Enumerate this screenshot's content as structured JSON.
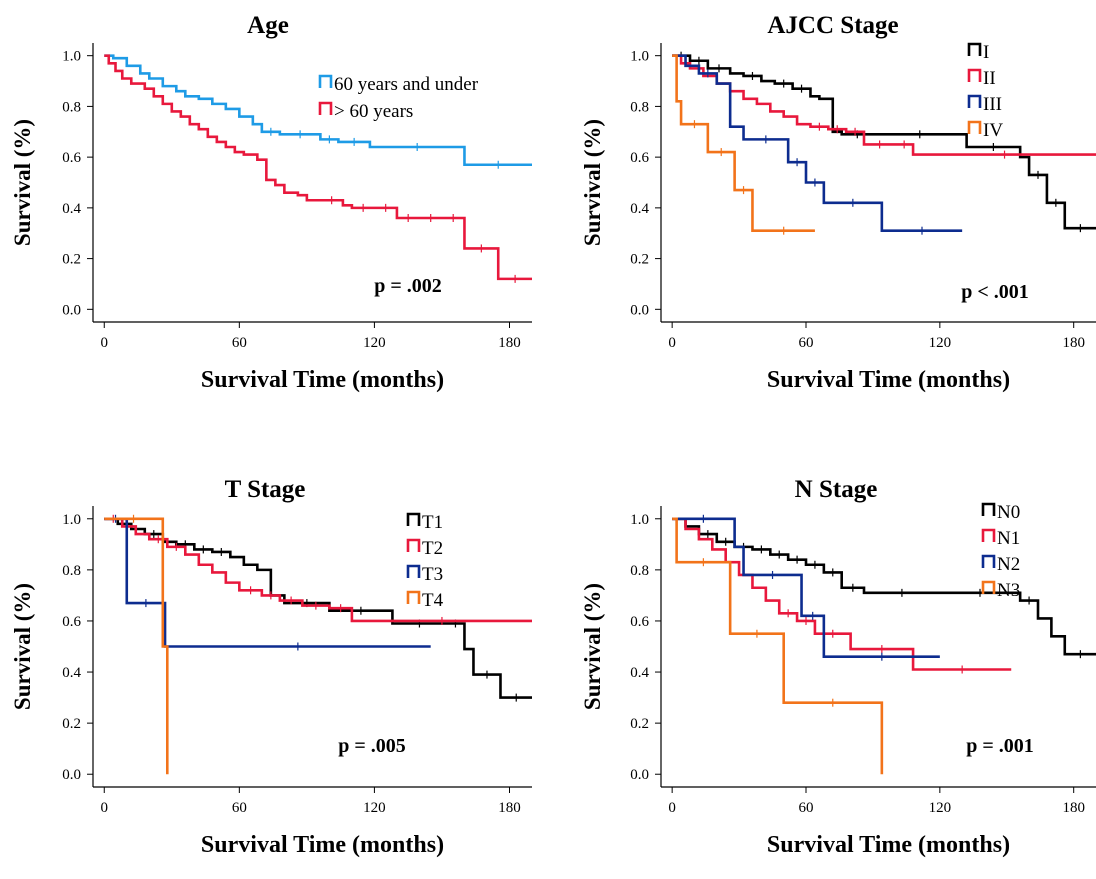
{
  "chart_data": [
    {
      "type": "line",
      "title": "Age",
      "xlabel": "Survival Time (months)",
      "ylabel": "Survival (%)",
      "xticks": [
        "0",
        "60",
        "120",
        "180"
      ],
      "yticks": [
        "0.0",
        "0.2",
        "0.4",
        "0.6",
        "0.8",
        "1.0"
      ],
      "xlim": [
        -5,
        190
      ],
      "ylim": [
        -0.05,
        1.05
      ],
      "legend_position": "top-right",
      "annotation": "p = .002",
      "series": [
        {
          "name": "60 years and under",
          "color": "#1e9be6",
          "x": [
            0,
            4,
            10,
            16,
            20,
            26,
            32,
            36,
            42,
            48,
            54,
            60,
            66,
            70,
            78,
            96,
            104,
            118,
            160,
            190
          ],
          "y": [
            1.0,
            0.99,
            0.96,
            0.93,
            0.91,
            0.88,
            0.86,
            0.84,
            0.83,
            0.81,
            0.79,
            0.76,
            0.73,
            0.7,
            0.69,
            0.67,
            0.66,
            0.64,
            0.57,
            0.57
          ]
        },
        {
          "name": "> 60 years",
          "color": "#e8183c",
          "x": [
            0,
            2,
            5,
            8,
            12,
            18,
            22,
            26,
            30,
            34,
            38,
            42,
            46,
            50,
            54,
            58,
            62,
            68,
            72,
            76,
            80,
            86,
            90,
            96,
            106,
            110,
            120,
            130,
            140,
            150,
            160,
            175,
            190
          ],
          "y": [
            1.0,
            0.97,
            0.94,
            0.91,
            0.89,
            0.87,
            0.84,
            0.81,
            0.78,
            0.76,
            0.73,
            0.71,
            0.68,
            0.66,
            0.64,
            0.62,
            0.61,
            0.59,
            0.51,
            0.49,
            0.46,
            0.45,
            0.43,
            0.43,
            0.41,
            0.4,
            0.4,
            0.36,
            0.36,
            0.36,
            0.24,
            0.12,
            0.12
          ]
        }
      ]
    },
    {
      "type": "line",
      "title": "AJCC Stage",
      "xlabel": "Survival Time (months)",
      "ylabel": "Survival (%)",
      "xticks": [
        "0",
        "60",
        "120",
        "180"
      ],
      "yticks": [
        "0.0",
        "0.2",
        "0.4",
        "0.6",
        "0.8",
        "1.0"
      ],
      "xlim": [
        -5,
        190
      ],
      "ylim": [
        -0.05,
        1.05
      ],
      "legend_position": "top-right",
      "annotation": "p < .001",
      "series": [
        {
          "name": "I",
          "color": "#000000",
          "x": [
            0,
            8,
            16,
            26,
            32,
            40,
            46,
            54,
            62,
            66,
            72,
            76,
            90,
            132,
            156,
            160,
            168,
            176,
            190
          ],
          "y": [
            1.0,
            0.98,
            0.95,
            0.93,
            0.92,
            0.9,
            0.89,
            0.87,
            0.84,
            0.83,
            0.7,
            0.69,
            0.69,
            0.64,
            0.6,
            0.53,
            0.42,
            0.32,
            0.32
          ]
        },
        {
          "name": "II",
          "color": "#e8183c",
          "x": [
            0,
            4,
            8,
            14,
            20,
            26,
            32,
            38,
            44,
            50,
            56,
            62,
            70,
            78,
            86,
            100,
            108,
            190
          ],
          "y": [
            1.0,
            0.97,
            0.95,
            0.92,
            0.89,
            0.86,
            0.83,
            0.81,
            0.78,
            0.76,
            0.73,
            0.72,
            0.71,
            0.7,
            0.65,
            0.65,
            0.61,
            0.61
          ]
        },
        {
          "name": "III",
          "color": "#0d2c8f",
          "x": [
            0,
            6,
            12,
            20,
            26,
            32,
            52,
            60,
            68,
            94,
            130
          ],
          "y": [
            1.0,
            0.96,
            0.93,
            0.89,
            0.72,
            0.67,
            0.58,
            0.5,
            0.42,
            0.31,
            0.31
          ]
        },
        {
          "name": "IV",
          "color": "#f2731a",
          "x": [
            0,
            2,
            4,
            16,
            28,
            36,
            64
          ],
          "y": [
            1.0,
            0.82,
            0.73,
            0.62,
            0.47,
            0.31,
            0.31
          ]
        }
      ]
    },
    {
      "type": "line",
      "title": "T Stage",
      "xlabel": "Survival Time (months)",
      "ylabel": "Survival (%)",
      "xticks": [
        "0",
        "60",
        "120",
        "180"
      ],
      "yticks": [
        "0.0",
        "0.2",
        "0.4",
        "0.6",
        "0.8",
        "1.0"
      ],
      "xlim": [
        -5,
        190
      ],
      "ylim": [
        -0.05,
        1.05
      ],
      "legend_position": "top-right",
      "annotation": "p = .005",
      "series": [
        {
          "name": "T1",
          "color": "#000000",
          "x": [
            0,
            6,
            12,
            18,
            26,
            32,
            40,
            48,
            56,
            62,
            68,
            74,
            80,
            100,
            128,
            152,
            160,
            164,
            176,
            190
          ],
          "y": [
            1.0,
            0.98,
            0.96,
            0.94,
            0.91,
            0.9,
            0.88,
            0.87,
            0.85,
            0.82,
            0.8,
            0.7,
            0.67,
            0.64,
            0.59,
            0.59,
            0.49,
            0.39,
            0.3,
            0.3
          ]
        },
        {
          "name": "T2",
          "color": "#e8183c",
          "x": [
            0,
            8,
            14,
            20,
            28,
            36,
            42,
            48,
            54,
            60,
            70,
            78,
            88,
            100,
            110,
            190
          ],
          "y": [
            1.0,
            0.97,
            0.94,
            0.92,
            0.89,
            0.86,
            0.82,
            0.79,
            0.75,
            0.72,
            0.7,
            0.68,
            0.66,
            0.65,
            0.6,
            0.6
          ]
        },
        {
          "name": "T3",
          "color": "#0d2c8f",
          "x": [
            0,
            10,
            27,
            145
          ],
          "y": [
            1.0,
            0.67,
            0.5,
            0.5
          ]
        },
        {
          "name": "T4",
          "color": "#f2731a",
          "x": [
            0,
            26,
            28
          ],
          "y": [
            1.0,
            0.5,
            0.0
          ]
        }
      ]
    },
    {
      "type": "line",
      "title": "N Stage",
      "xlabel": "Survival Time (months)",
      "ylabel": "Survival (%)",
      "xticks": [
        "0",
        "60",
        "120",
        "180"
      ],
      "yticks": [
        "0.0",
        "0.2",
        "0.4",
        "0.6",
        "0.8",
        "1.0"
      ],
      "xlim": [
        -5,
        190
      ],
      "ylim": [
        -0.05,
        1.05
      ],
      "legend_position": "top-right",
      "annotation": "p = .001",
      "series": [
        {
          "name": "N0",
          "color": "#000000",
          "x": [
            0,
            6,
            12,
            20,
            28,
            36,
            44,
            52,
            60,
            68,
            76,
            86,
            120,
            156,
            164,
            170,
            176,
            190
          ],
          "y": [
            1.0,
            0.97,
            0.94,
            0.91,
            0.89,
            0.88,
            0.86,
            0.84,
            0.82,
            0.79,
            0.73,
            0.71,
            0.71,
            0.68,
            0.61,
            0.54,
            0.47,
            0.47
          ]
        },
        {
          "name": "N1",
          "color": "#e8183c",
          "x": [
            0,
            6,
            12,
            18,
            24,
            30,
            36,
            42,
            48,
            56,
            64,
            80,
            108,
            152
          ],
          "y": [
            1.0,
            0.96,
            0.92,
            0.88,
            0.83,
            0.78,
            0.73,
            0.68,
            0.63,
            0.6,
            0.55,
            0.49,
            0.41,
            0.41
          ]
        },
        {
          "name": "N2",
          "color": "#0d2c8f",
          "x": [
            0,
            28,
            32,
            58,
            68,
            120
          ],
          "y": [
            1.0,
            0.89,
            0.78,
            0.62,
            0.46,
            0.46
          ]
        },
        {
          "name": "N3",
          "color": "#f2731a",
          "x": [
            0,
            2,
            26,
            50,
            94
          ],
          "y": [
            1.0,
            0.83,
            0.55,
            0.28,
            0.0
          ]
        }
      ]
    }
  ]
}
